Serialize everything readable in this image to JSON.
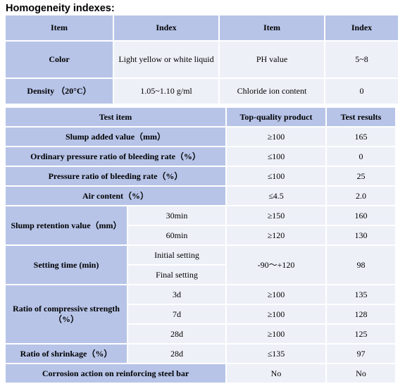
{
  "heading": "Homogeneity indexes:",
  "table1": {
    "headers": [
      "Item",
      "Index",
      "Item",
      "Index"
    ],
    "rows": [
      [
        "Color",
        "Light yellow or white liquid",
        "PH value",
        "5~8"
      ],
      [
        "Density （20°C）",
        "1.05~1.10 g/ml",
        "Chloride ion content",
        "0"
      ]
    ]
  },
  "table2": {
    "headers": [
      "Test item",
      "Top-quality product",
      "Test results"
    ],
    "slump_added": {
      "label": "Slump added value（mm）",
      "spec": "≥100",
      "result": "165"
    },
    "ordinary_bleeding": {
      "label": "Ordinary pressure ratio of bleeding rate（%）",
      "spec": "≤100",
      "result": "0"
    },
    "pressure_bleeding": {
      "label": "Pressure ratio of bleeding rate（%）",
      "spec": "≤100",
      "result": "25"
    },
    "air_content": {
      "label": "Air content（%）",
      "spec": "≤4.5",
      "result": "2.0"
    },
    "slump_retention": {
      "label": "Slump retention value（mm）",
      "rows": [
        {
          "sub": "30min",
          "spec": "≥150",
          "result": "160"
        },
        {
          "sub": "60min",
          "spec": "≥120",
          "result": "130"
        }
      ]
    },
    "setting_time": {
      "label": "Setting time (min)",
      "sub1": "Initial setting",
      "sub2": "Final setting",
      "spec": "-90～+120",
      "result": "98"
    },
    "compressive": {
      "label": "Ratio of compressive strength（%）",
      "rows": [
        {
          "sub": "3d",
          "spec": "≥100",
          "result": "135"
        },
        {
          "sub": "7d",
          "spec": "≥100",
          "result": "128"
        },
        {
          "sub": "28d",
          "spec": "≥100",
          "result": "125"
        }
      ]
    },
    "shrinkage": {
      "label": "Ratio of shrinkage（%）",
      "sub": "28d",
      "spec": "≤135",
      "result": "97"
    },
    "corrosion": {
      "label": "Corrosion action on reinforcing steel bar",
      "spec": "No",
      "result": "No"
    }
  }
}
